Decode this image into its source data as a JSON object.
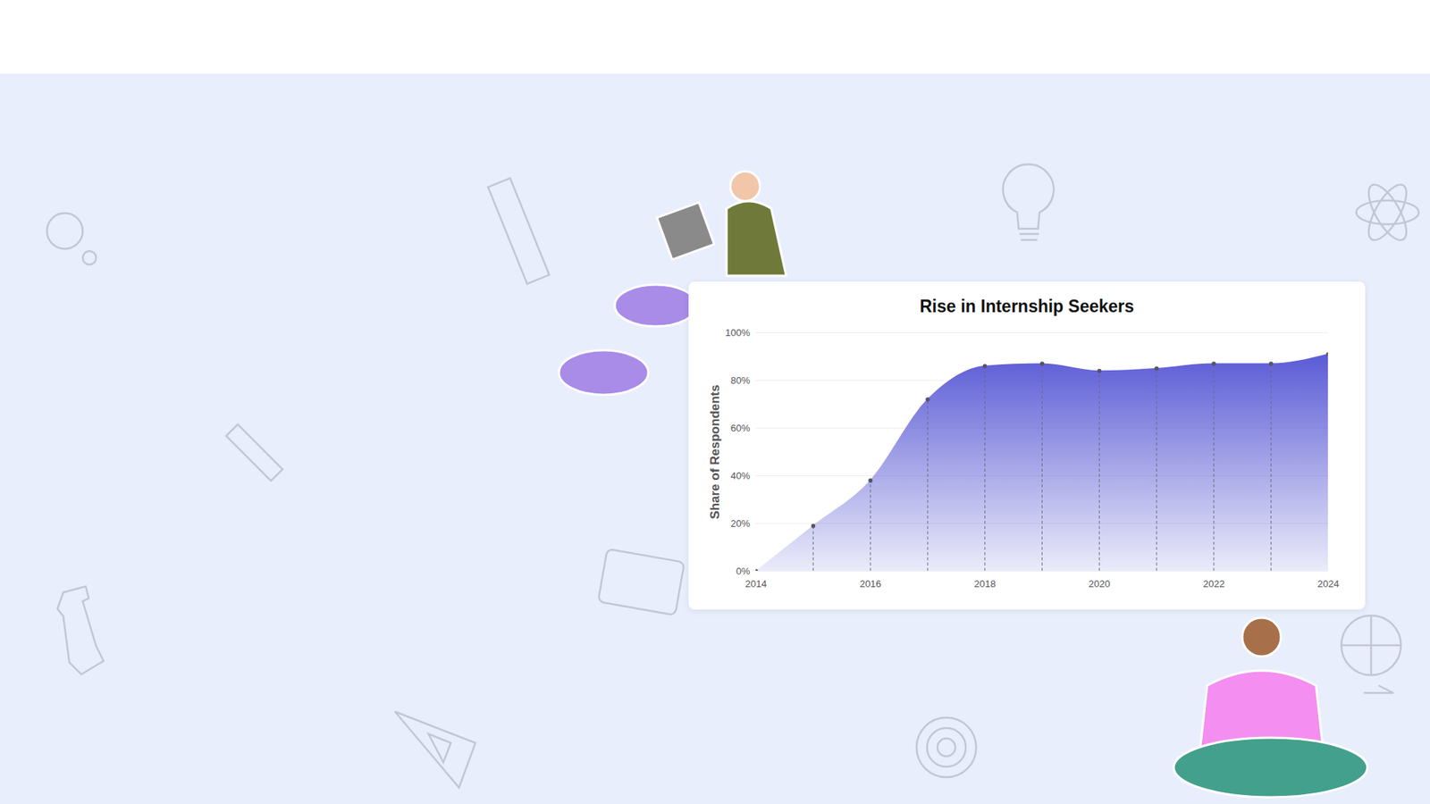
{
  "chart_data": {
    "type": "area",
    "title": "Rise in Internship Seekers",
    "y_label": "Share of Respondents",
    "x": [
      2014,
      2015,
      2016,
      2017,
      2018,
      2019,
      2020,
      2021,
      2022,
      2023,
      2024
    ],
    "values": [
      0,
      19,
      38,
      72,
      86,
      87,
      84,
      85,
      87,
      87,
      91
    ],
    "color": "#5b5bd6",
    "marker": "circle",
    "xlim": [
      2014,
      2024
    ],
    "xticks": [
      2014,
      2016,
      2018,
      2020,
      2022,
      2024
    ],
    "ylim": [
      0,
      100
    ],
    "yticks": [
      {
        "value": 0,
        "label": "0%"
      },
      {
        "value": 20,
        "label": "20%"
      },
      {
        "value": 40,
        "label": "40%"
      },
      {
        "value": 60,
        "label": "60%"
      },
      {
        "value": 80,
        "label": "80%"
      },
      {
        "value": 100,
        "label": "100%"
      }
    ],
    "grid": true
  }
}
